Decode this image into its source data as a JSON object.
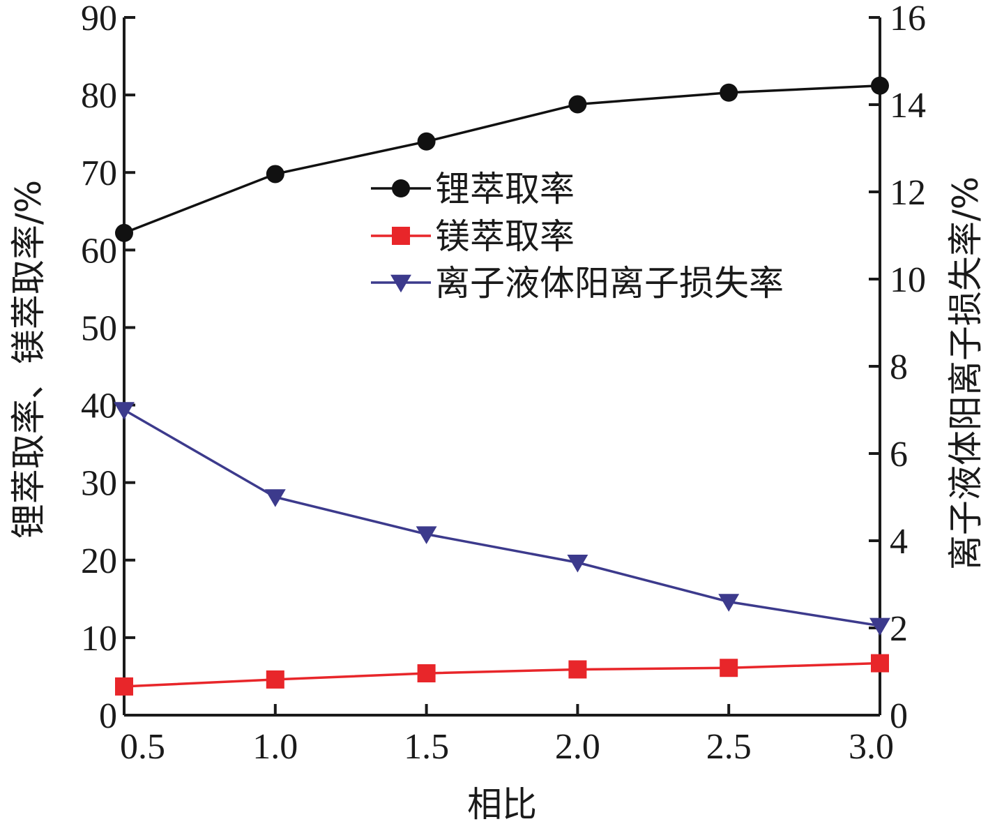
{
  "chart_data": {
    "type": "line",
    "title": "",
    "xlabel": "相比",
    "ylabel_left": "锂萃取率、镁萃取率/%",
    "ylabel_right": "离子液体阳离子损失率/%",
    "x": [
      0.5,
      1.0,
      1.5,
      2.0,
      2.5,
      3.0
    ],
    "x_tick_labels": [
      "0.5",
      "1.0",
      "1.5",
      "2.0",
      "2.5",
      "3.0"
    ],
    "xlim": [
      0.5,
      3.0
    ],
    "ylim_left": [
      0,
      90
    ],
    "ylim_right": [
      0,
      16
    ],
    "y_left_ticks": [
      0,
      10,
      20,
      30,
      40,
      50,
      60,
      70,
      80,
      90
    ],
    "y_left_tick_labels": [
      "0",
      "10",
      "20",
      "30",
      "40",
      "50",
      "60",
      "70",
      "80",
      "90"
    ],
    "y_right_ticks": [
      0,
      2,
      4,
      6,
      8,
      10,
      12,
      14,
      16
    ],
    "y_right_tick_labels": [
      "0",
      "2",
      "4",
      "6",
      "8",
      "10",
      "12",
      "14",
      "16"
    ],
    "grid": false,
    "legend_position": "top-center",
    "series": [
      {
        "name": "锂萃取率",
        "axis": "left",
        "color": "#111111",
        "marker": "circle",
        "values": [
          62.2,
          69.8,
          74.0,
          78.8,
          80.3,
          81.2
        ]
      },
      {
        "name": "镁萃取率",
        "axis": "left",
        "color": "#e8262a",
        "marker": "square",
        "values": [
          3.7,
          4.6,
          5.4,
          5.9,
          6.1,
          6.7
        ]
      },
      {
        "name": "离子液体阳离子损失率",
        "axis": "right",
        "color": "#3c3a8c",
        "marker": "triangle-down",
        "values": [
          7.0,
          5.0,
          4.15,
          3.5,
          2.6,
          2.05
        ]
      }
    ]
  }
}
